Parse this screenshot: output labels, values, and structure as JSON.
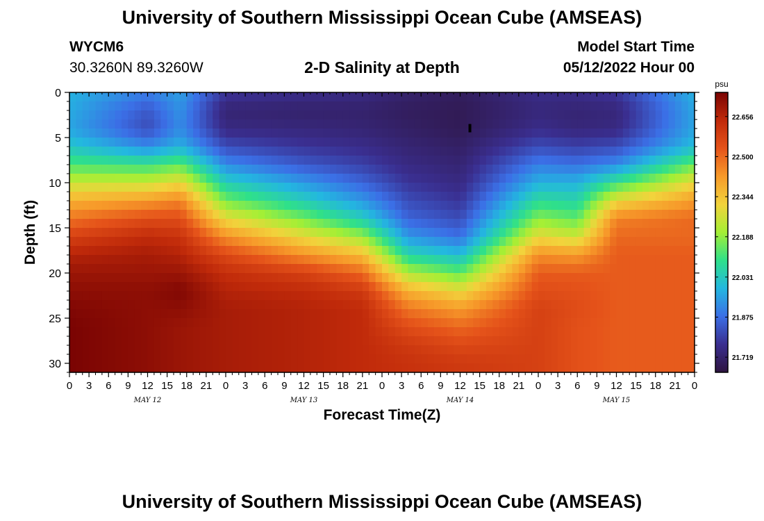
{
  "page": {
    "title": "University of Southern Mississippi Ocean Cube (AMSEAS)",
    "station_id": "WYCM6",
    "coordinates": "30.3260N  89.3260W",
    "subtitle": "2-D Salinity at Depth",
    "model_start_label": "Model Start Time",
    "model_start_value": "05/12/2022 Hour 00",
    "footer_title": "University of Southern Mississippi Ocean Cube (AMSEAS)"
  },
  "chart_data": {
    "type": "heatmap",
    "title": "2-D Salinity at Depth",
    "xlabel": "Forecast Time(Z)",
    "ylabel": "Depth (ft)",
    "x_tick_labels": [
      "0",
      "3",
      "6",
      "9",
      "12",
      "15",
      "18",
      "21",
      "0",
      "3",
      "6",
      "9",
      "12",
      "15",
      "18",
      "21",
      "0",
      "3",
      "6",
      "9",
      "12",
      "15",
      "18",
      "21",
      "0",
      "3",
      "6",
      "9",
      "12",
      "15",
      "18",
      "21",
      "0"
    ],
    "x_range_hours": [
      0,
      96
    ],
    "day_labels": [
      {
        "label": "MAY 12",
        "hour": 12
      },
      {
        "label": "MAY 13",
        "hour": 36
      },
      {
        "label": "MAY 14",
        "hour": 60
      },
      {
        "label": "MAY 15",
        "hour": 84
      }
    ],
    "y_ticks": [
      "0",
      "5",
      "10",
      "15",
      "20",
      "25",
      "30"
    ],
    "y_range_ft": [
      0,
      31
    ],
    "colorbar": {
      "unit": "psu",
      "range": [
        21.66,
        22.75
      ],
      "ticks": [
        "22.656",
        "22.500",
        "22.344",
        "22.188",
        "22.031",
        "21.875",
        "21.719"
      ],
      "colors": [
        "#2e1440",
        "#3a2e8f",
        "#3b6fe6",
        "#23b7e0",
        "#2fe08a",
        "#a5ef35",
        "#f2d33c",
        "#f79a2a",
        "#e5531a",
        "#c02a0a",
        "#7a0403"
      ]
    },
    "time_hours": [
      0,
      12,
      17,
      24,
      36,
      45,
      52,
      60,
      72,
      78,
      84,
      96
    ],
    "depth_ft": [
      0,
      2,
      4,
      6,
      8,
      10,
      12,
      14,
      16,
      18,
      20,
      22,
      24,
      26,
      28,
      30,
      31
    ],
    "salinity_psu": [
      [
        21.98,
        21.9,
        21.95,
        21.78,
        21.76,
        21.75,
        21.72,
        21.7,
        21.76,
        21.76,
        21.78,
        21.98
      ],
      [
        21.97,
        21.84,
        21.93,
        21.73,
        21.72,
        21.72,
        21.7,
        21.69,
        21.74,
        21.73,
        21.74,
        21.96
      ],
      [
        21.96,
        21.82,
        21.92,
        21.75,
        21.74,
        21.73,
        21.71,
        21.69,
        21.76,
        21.74,
        21.75,
        21.96
      ],
      [
        22.02,
        21.92,
        21.98,
        21.82,
        21.78,
        21.76,
        21.73,
        21.71,
        21.82,
        21.8,
        21.82,
        22.0
      ],
      [
        22.12,
        22.1,
        22.14,
        21.92,
        21.84,
        21.8,
        21.75,
        21.73,
        21.9,
        21.88,
        21.92,
        22.15
      ],
      [
        22.25,
        22.25,
        22.3,
        22.04,
        21.94,
        21.86,
        21.78,
        21.75,
        21.98,
        21.98,
        22.1,
        22.3
      ],
      [
        22.38,
        22.42,
        22.46,
        22.16,
        22.04,
        21.94,
        21.82,
        21.78,
        22.08,
        22.06,
        22.3,
        22.42
      ],
      [
        22.48,
        22.55,
        22.55,
        22.3,
        22.16,
        22.04,
        21.86,
        21.82,
        22.18,
        22.14,
        22.46,
        22.5
      ],
      [
        22.58,
        22.64,
        22.62,
        22.44,
        22.3,
        22.2,
        21.94,
        21.88,
        22.3,
        22.26,
        22.5,
        22.5
      ],
      [
        22.66,
        22.68,
        22.66,
        22.56,
        22.44,
        22.36,
        22.06,
        22.0,
        22.44,
        22.42,
        22.52,
        22.52
      ],
      [
        22.7,
        22.7,
        22.7,
        22.63,
        22.58,
        22.5,
        22.22,
        22.14,
        22.52,
        22.52,
        22.52,
        22.52
      ],
      [
        22.72,
        22.72,
        22.74,
        22.66,
        22.64,
        22.6,
        22.38,
        22.3,
        22.55,
        22.54,
        22.52,
        22.52
      ],
      [
        22.74,
        22.72,
        22.72,
        22.68,
        22.66,
        22.64,
        22.48,
        22.42,
        22.58,
        22.55,
        22.52,
        22.52
      ],
      [
        22.75,
        22.72,
        22.7,
        22.68,
        22.66,
        22.64,
        22.55,
        22.5,
        22.58,
        22.54,
        22.52,
        22.52
      ],
      [
        22.75,
        22.72,
        22.7,
        22.68,
        22.66,
        22.64,
        22.6,
        22.56,
        22.58,
        22.54,
        22.52,
        22.52
      ],
      [
        22.75,
        22.72,
        22.7,
        22.68,
        22.66,
        22.64,
        22.62,
        22.6,
        22.58,
        22.54,
        22.52,
        22.52
      ],
      [
        22.75,
        22.72,
        22.7,
        22.68,
        22.66,
        22.64,
        22.62,
        22.6,
        22.58,
        22.54,
        22.52,
        22.52
      ]
    ]
  }
}
